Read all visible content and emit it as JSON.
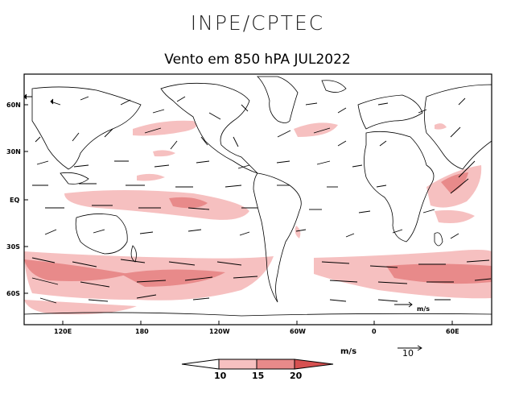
{
  "header": {
    "title": "INPE/CPTEC"
  },
  "map": {
    "title": "Vento em 850 hPA JUL2022",
    "lat_labels": [
      "60N",
      "30N",
      "EQ",
      "30S",
      "60S"
    ],
    "lon_labels": [
      "120E",
      "180",
      "120W",
      "60W",
      "0",
      "60E"
    ],
    "inset_unit": "m/s"
  },
  "legend": {
    "unit": "m/s",
    "ticks": [
      "10",
      "15",
      "20"
    ],
    "colors": [
      "#ffffff",
      "#f6c0c0",
      "#e88a8a",
      "#d65050"
    ],
    "reference_vector_label": "10"
  }
}
